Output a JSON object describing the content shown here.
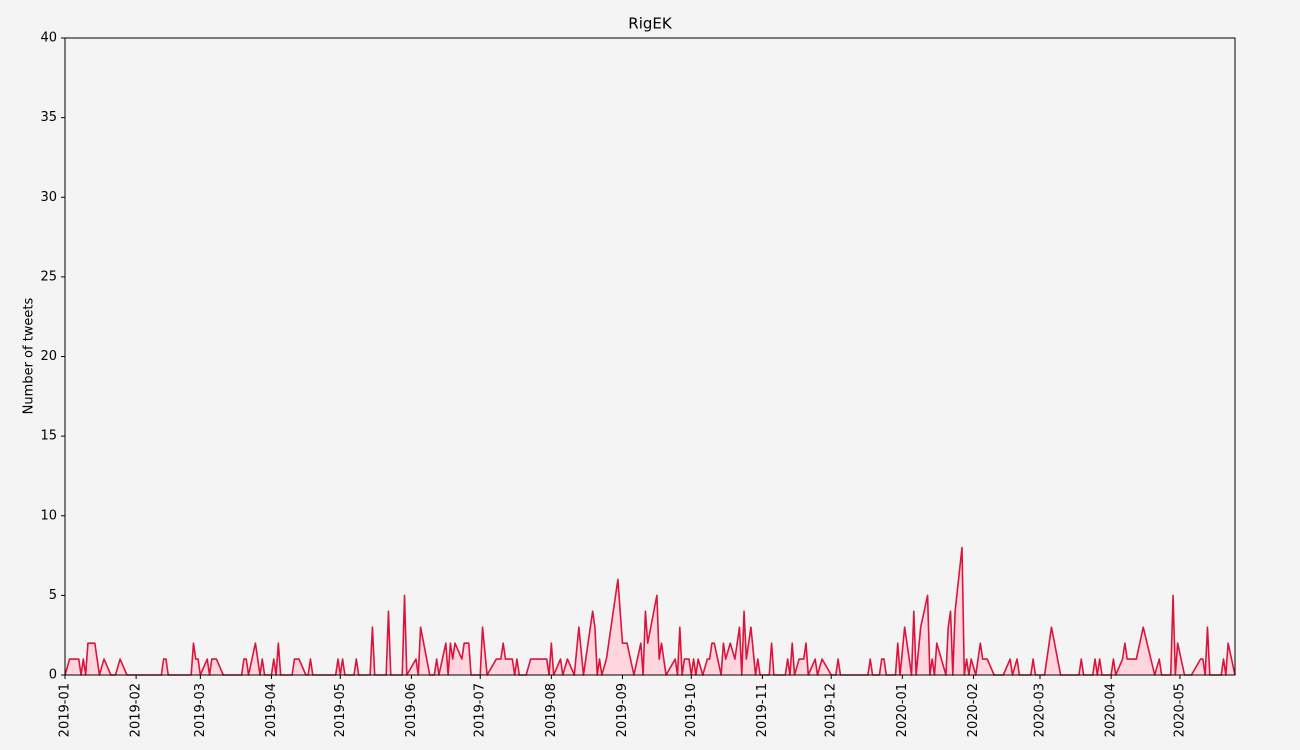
{
  "chart_data": {
    "type": "line",
    "title": "RigEK",
    "y_label": "Number of tweets",
    "color": "#dc143c",
    "fill_color": "#ffd6de",
    "xlim": [
      "2019-01-01",
      "2020-05-25"
    ],
    "ylim": [
      0,
      40
    ],
    "yticks": [
      0,
      5,
      10,
      15,
      20,
      25,
      30,
      35,
      40
    ],
    "xticks": [
      {
        "value": "2019-01-01",
        "label": "2019-01"
      },
      {
        "value": "2019-02-01",
        "label": "2019-02"
      },
      {
        "value": "2019-03-01",
        "label": "2019-03"
      },
      {
        "value": "2019-04-01",
        "label": "2019-04"
      },
      {
        "value": "2019-05-01",
        "label": "2019-05"
      },
      {
        "value": "2019-06-01",
        "label": "2019-06"
      },
      {
        "value": "2019-07-01",
        "label": "2019-07"
      },
      {
        "value": "2019-08-01",
        "label": "2019-08"
      },
      {
        "value": "2019-09-01",
        "label": "2019-09"
      },
      {
        "value": "2019-10-01",
        "label": "2019-10"
      },
      {
        "value": "2019-11-01",
        "label": "2019-11"
      },
      {
        "value": "2019-12-01",
        "label": "2019-12"
      },
      {
        "value": "2020-01-01",
        "label": "2020-01"
      },
      {
        "value": "2020-02-01",
        "label": "2020-02"
      },
      {
        "value": "2020-03-01",
        "label": "2020-03"
      },
      {
        "value": "2020-04-01",
        "label": "2020-04"
      },
      {
        "value": "2020-05-01",
        "label": "2020-05"
      }
    ],
    "x": [
      "2019-01-01",
      "2019-01-03",
      "2019-01-07",
      "2019-01-08",
      "2019-01-09",
      "2019-01-10",
      "2019-01-11",
      "2019-01-14",
      "2019-01-16",
      "2019-01-18",
      "2019-01-21",
      "2019-01-23",
      "2019-01-25",
      "2019-01-28",
      "2019-02-12",
      "2019-02-13",
      "2019-02-14",
      "2019-02-15",
      "2019-02-25",
      "2019-02-26",
      "2019-02-27",
      "2019-02-28",
      "2019-03-01",
      "2019-03-04",
      "2019-03-05",
      "2019-03-06",
      "2019-03-08",
      "2019-03-11",
      "2019-03-19",
      "2019-03-20",
      "2019-03-21",
      "2019-03-22",
      "2019-03-25",
      "2019-03-27",
      "2019-03-28",
      "2019-03-29",
      "2019-04-01",
      "2019-04-02",
      "2019-04-03",
      "2019-04-04",
      "2019-04-05",
      "2019-04-10",
      "2019-04-11",
      "2019-04-13",
      "2019-04-16",
      "2019-04-17",
      "2019-04-18",
      "2019-04-19",
      "2019-04-29",
      "2019-04-30",
      "2019-05-01",
      "2019-05-02",
      "2019-05-03",
      "2019-05-07",
      "2019-05-08",
      "2019-05-09",
      "2019-05-14",
      "2019-05-15",
      "2019-05-16",
      "2019-05-21",
      "2019-05-22",
      "2019-05-23",
      "2019-05-28",
      "2019-05-29",
      "2019-05-30",
      "2019-06-03",
      "2019-06-04",
      "2019-06-05",
      "2019-06-09",
      "2019-06-11",
      "2019-06-12",
      "2019-06-13",
      "2019-06-16",
      "2019-06-17",
      "2019-06-18",
      "2019-06-19",
      "2019-06-20",
      "2019-06-23",
      "2019-06-24",
      "2019-06-26",
      "2019-06-27",
      "2019-07-01",
      "2019-07-02",
      "2019-07-04",
      "2019-07-08",
      "2019-07-10",
      "2019-07-11",
      "2019-07-12",
      "2019-07-15",
      "2019-07-16",
      "2019-07-17",
      "2019-07-18",
      "2019-07-21",
      "2019-07-23",
      "2019-07-30",
      "2019-07-31",
      "2019-08-01",
      "2019-08-02",
      "2019-08-05",
      "2019-08-06",
      "2019-08-08",
      "2019-08-11",
      "2019-08-13",
      "2019-08-15",
      "2019-08-19",
      "2019-08-20",
      "2019-08-21",
      "2019-08-22",
      "2019-08-23",
      "2019-08-25",
      "2019-08-30",
      "2019-09-01",
      "2019-09-03",
      "2019-09-06",
      "2019-09-09",
      "2019-09-10",
      "2019-09-11",
      "2019-09-12",
      "2019-09-16",
      "2019-09-17",
      "2019-09-18",
      "2019-09-20",
      "2019-09-24",
      "2019-09-25",
      "2019-09-26",
      "2019-09-27",
      "2019-09-28",
      "2019-09-30",
      "2019-10-01",
      "2019-10-02",
      "2019-10-03",
      "2019-10-04",
      "2019-10-06",
      "2019-10-08",
      "2019-10-09",
      "2019-10-10",
      "2019-10-11",
      "2019-10-14",
      "2019-10-15",
      "2019-10-16",
      "2019-10-18",
      "2019-10-20",
      "2019-10-22",
      "2019-10-23",
      "2019-10-24",
      "2019-10-25",
      "2019-10-27",
      "2019-10-29",
      "2019-10-30",
      "2019-10-31",
      "2019-11-04",
      "2019-11-05",
      "2019-11-06",
      "2019-11-11",
      "2019-11-12",
      "2019-11-13",
      "2019-11-14",
      "2019-11-15",
      "2019-11-17",
      "2019-11-19",
      "2019-11-20",
      "2019-11-21",
      "2019-11-24",
      "2019-11-25",
      "2019-11-27",
      "2019-12-01",
      "2019-12-03",
      "2019-12-04",
      "2019-12-05",
      "2019-12-17",
      "2019-12-18",
      "2019-12-19",
      "2019-12-22",
      "2019-12-23",
      "2019-12-24",
      "2019-12-25",
      "2019-12-29",
      "2019-12-30",
      "2019-12-31",
      "2020-01-02",
      "2020-01-05",
      "2020-01-06",
      "2020-01-07",
      "2020-01-09",
      "2020-01-12",
      "2020-01-13",
      "2020-01-14",
      "2020-01-15",
      "2020-01-16",
      "2020-01-18",
      "2020-01-20",
      "2020-01-21",
      "2020-01-22",
      "2020-01-23",
      "2020-01-24",
      "2020-01-27",
      "2020-01-28",
      "2020-01-29",
      "2020-01-30",
      "2020-01-31",
      "2020-02-02",
      "2020-02-04",
      "2020-02-05",
      "2020-02-07",
      "2020-02-10",
      "2020-02-14",
      "2020-02-17",
      "2020-02-18",
      "2020-02-20",
      "2020-02-21",
      "2020-02-26",
      "2020-02-27",
      "2020-02-28",
      "2020-03-03",
      "2020-03-06",
      "2020-03-10",
      "2020-03-18",
      "2020-03-19",
      "2020-03-20",
      "2020-03-24",
      "2020-03-25",
      "2020-03-26",
      "2020-03-27",
      "2020-03-28",
      "2020-04-01",
      "2020-04-02",
      "2020-04-03",
      "2020-04-06",
      "2020-04-07",
      "2020-04-08",
      "2020-04-12",
      "2020-04-15",
      "2020-04-20",
      "2020-04-22",
      "2020-04-23",
      "2020-04-27",
      "2020-04-28",
      "2020-04-29",
      "2020-04-30",
      "2020-05-03",
      "2020-05-06",
      "2020-05-10",
      "2020-05-11",
      "2020-05-12",
      "2020-05-13",
      "2020-05-14",
      "2020-05-19",
      "2020-05-20",
      "2020-05-21",
      "2020-05-22",
      "2020-05-25"
    ],
    "values": [
      0,
      1,
      1,
      0,
      1,
      0,
      2,
      2,
      0,
      1,
      0,
      0,
      1,
      0,
      0,
      1,
      1,
      0,
      0,
      2,
      1,
      1,
      0,
      1,
      0,
      1,
      1,
      0,
      0,
      1,
      1,
      0,
      2,
      0,
      1,
      0,
      0,
      1,
      0,
      2,
      0,
      0,
      1,
      1,
      0,
      0,
      1,
      0,
      0,
      1,
      0,
      1,
      0,
      0,
      1,
      0,
      0,
      3,
      0,
      0,
      4,
      0,
      0,
      5,
      0,
      1,
      0,
      3,
      0,
      0,
      1,
      0,
      2,
      0,
      2,
      1,
      2,
      1,
      2,
      2,
      0,
      0,
      3,
      0,
      1,
      1,
      2,
      1,
      1,
      0,
      1,
      0,
      0,
      1,
      1,
      0,
      2,
      0,
      1,
      0,
      1,
      0,
      3,
      0,
      4,
      3,
      0,
      1,
      0,
      1,
      6,
      2,
      2,
      0,
      2,
      0,
      4,
      2,
      5,
      1,
      2,
      0,
      1,
      0,
      3,
      0,
      1,
      1,
      0,
      1,
      0,
      1,
      0,
      1,
      1,
      2,
      2,
      0,
      2,
      1,
      2,
      1,
      3,
      0,
      4,
      1,
      3,
      0,
      1,
      0,
      0,
      2,
      0,
      0,
      1,
      0,
      2,
      0,
      1,
      1,
      2,
      0,
      1,
      0,
      1,
      0,
      0,
      1,
      0,
      0,
      1,
      0,
      0,
      1,
      1,
      0,
      0,
      2,
      0,
      3,
      0,
      4,
      0,
      3,
      5,
      0,
      1,
      0,
      2,
      1,
      0,
      3,
      4,
      0,
      4,
      8,
      0,
      1,
      0,
      1,
      0,
      2,
      1,
      1,
      0,
      0,
      1,
      0,
      1,
      0,
      0,
      1,
      0,
      0,
      3,
      0,
      0,
      1,
      0,
      0,
      1,
      0,
      1,
      0,
      0,
      1,
      0,
      1,
      2,
      1,
      1,
      3,
      0,
      1,
      0,
      0,
      5,
      0,
      2,
      0,
      0,
      1,
      1,
      0,
      3,
      0,
      0,
      1,
      0,
      2,
      0
    ]
  }
}
